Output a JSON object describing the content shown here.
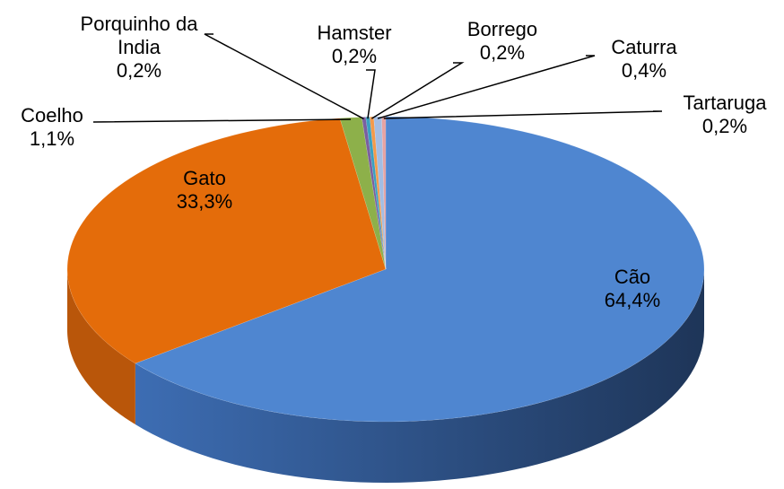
{
  "chart_data": {
    "type": "pie",
    "categories": [
      "Cão",
      "Gato",
      "Coelho",
      "Porquinho da India",
      "Hamster",
      "Borrego",
      "Caturra",
      "Tartaruga"
    ],
    "values": [
      64.4,
      33.3,
      1.1,
      0.2,
      0.2,
      0.2,
      0.4,
      0.2
    ],
    "value_labels": [
      "64,4%",
      "33,3%",
      "1,1%",
      "0,2%",
      "0,2%",
      "0,2%",
      "0,4%",
      "0,2%"
    ],
    "colors": [
      "#4f86d0",
      "#e46c0a",
      "#8db04a",
      "#7a5fa0",
      "#3aa0c0",
      "#f39a4a",
      "#a3bde3",
      "#e5a3a3"
    ]
  }
}
